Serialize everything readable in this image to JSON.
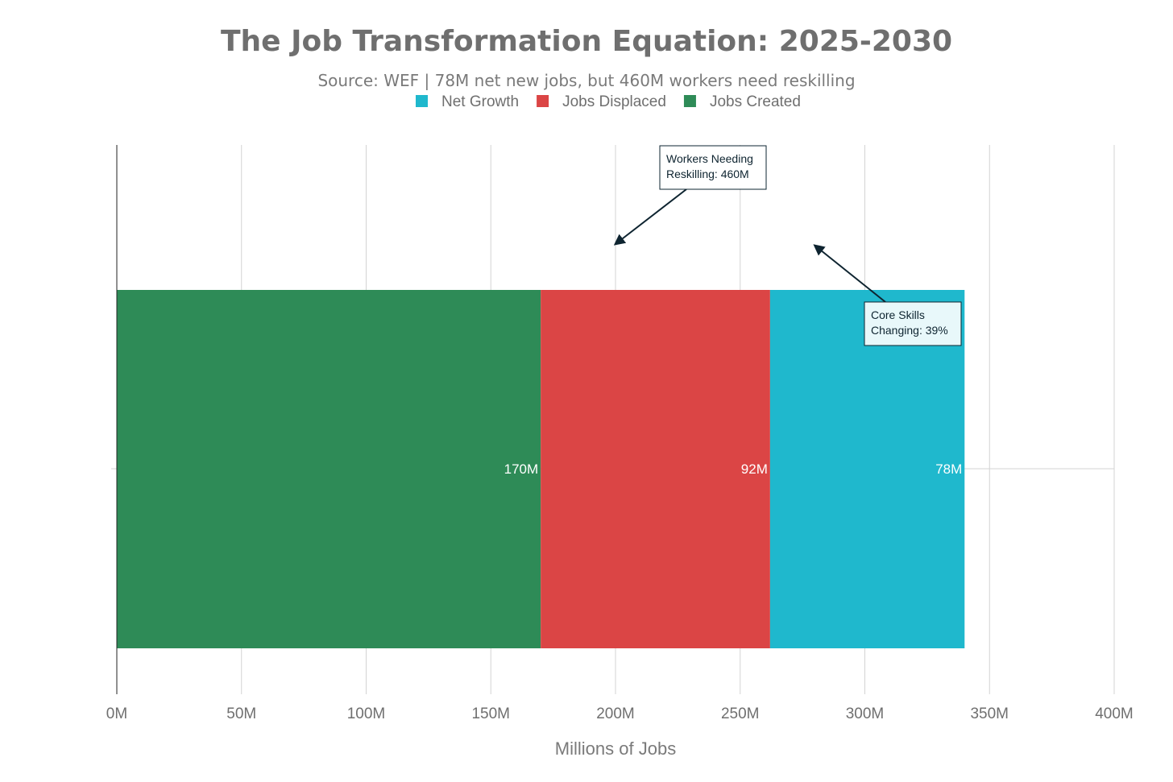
{
  "chart_data": {
    "type": "bar",
    "orientation": "horizontal",
    "stacked": true,
    "title": "The Job Transformation Equation: 2025-2030",
    "subtitle": "Source: WEF | 78M net new jobs, but 460M workers need reskilling",
    "xlabel": "Millions of Jobs",
    "ylabel": "",
    "xlim": [
      0,
      400
    ],
    "x_ticks": [
      0,
      50,
      100,
      150,
      200,
      250,
      300,
      350,
      400
    ],
    "x_tick_labels": [
      "0M",
      "50M",
      "100M",
      "150M",
      "200M",
      "250M",
      "300M",
      "350M",
      "400M"
    ],
    "grid": true,
    "legend_position": "top-center",
    "legend": [
      "Net Growth",
      "Jobs Displaced",
      "Jobs Created"
    ],
    "series": [
      {
        "name": "Jobs Created",
        "value": 170,
        "label": "170M",
        "color": "#2e8b57"
      },
      {
        "name": "Jobs Displaced",
        "value": 92,
        "label": "92M",
        "color": "#db4545"
      },
      {
        "name": "Net Growth",
        "value": 78,
        "label": "78M",
        "color": "#1fb8cd"
      }
    ],
    "annotations": [
      {
        "lines": [
          "Workers Needing",
          "Reskilling: 460M"
        ],
        "arrow_to_x": 200,
        "fill": "#ffffff"
      },
      {
        "lines": [
          "Core Skills",
          "Changing: 39%"
        ],
        "arrow_to_x": 280,
        "fill": "#e8f8fa"
      }
    ]
  }
}
